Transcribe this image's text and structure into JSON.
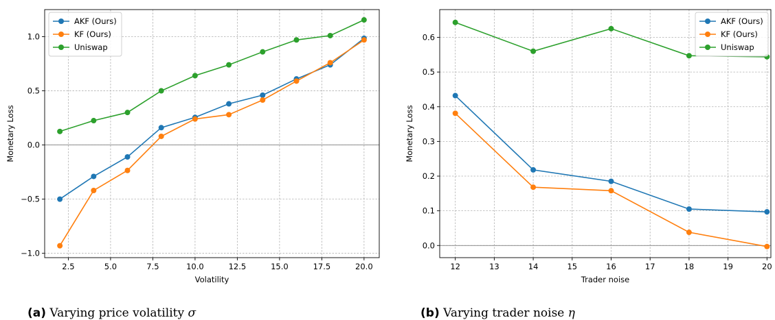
{
  "chart_data": [
    {
      "type": "line",
      "title": "",
      "xlabel": "Volatility",
      "ylabel": "Monetary Loss",
      "xlim": [
        1.1,
        20.9
      ],
      "ylim": [
        -1.04,
        1.25
      ],
      "xticks": [
        2.5,
        5.0,
        7.5,
        10.0,
        12.5,
        15.0,
        17.5,
        20.0
      ],
      "xtick_labels": [
        "2.5",
        "5.0",
        "7.5",
        "10.0",
        "12.5",
        "15.0",
        "17.5",
        "20.0"
      ],
      "yticks": [
        -1.0,
        -0.5,
        0.0,
        0.5,
        1.0
      ],
      "ytick_labels": [
        "−1.0",
        "−0.5",
        "0.0",
        "0.5",
        "1.0"
      ],
      "grid": true,
      "legend_position": "top-left",
      "zero_line": true,
      "x": [
        2,
        4,
        6,
        8,
        10,
        12,
        14,
        16,
        18,
        20
      ],
      "series": [
        {
          "name": "AKF (Ours)",
          "color": "#1f77b4",
          "values": [
            -0.5,
            -0.29,
            -0.11,
            0.16,
            0.255,
            0.38,
            0.46,
            0.61,
            0.74,
            0.985
          ]
        },
        {
          "name": "KF (Ours)",
          "color": "#ff7f0e",
          "values": [
            -0.93,
            -0.42,
            -0.235,
            0.08,
            0.24,
            0.28,
            0.415,
            0.59,
            0.76,
            0.97
          ]
        },
        {
          "name": "Uniswap",
          "color": "#2ca02c",
          "values": [
            0.125,
            0.225,
            0.3,
            0.5,
            0.64,
            0.74,
            0.86,
            0.97,
            1.01,
            1.155
          ]
        }
      ]
    },
    {
      "type": "line",
      "title": "",
      "xlabel": "Trader noise",
      "ylabel": "Monetary Loss",
      "xlim": [
        11.6,
        20.1
      ],
      "ylim": [
        -0.035,
        0.68
      ],
      "xticks": [
        12,
        13,
        14,
        15,
        16,
        17,
        18,
        19,
        20
      ],
      "xtick_labels": [
        "12",
        "13",
        "14",
        "15",
        "16",
        "17",
        "18",
        "19",
        "20"
      ],
      "yticks": [
        0.0,
        0.1,
        0.2,
        0.3,
        0.4,
        0.5,
        0.6
      ],
      "ytick_labels": [
        "0.0",
        "0.1",
        "0.2",
        "0.3",
        "0.4",
        "0.5",
        "0.6"
      ],
      "grid": true,
      "legend_position": "top-right",
      "zero_line": true,
      "x": [
        12,
        14,
        16,
        18,
        20
      ],
      "series": [
        {
          "name": "AKF (Ours)",
          "color": "#1f77b4",
          "values": [
            0.432,
            0.218,
            0.185,
            0.105,
            0.097
          ]
        },
        {
          "name": "KF (Ours)",
          "color": "#ff7f0e",
          "values": [
            0.381,
            0.168,
            0.158,
            0.038,
            -0.003
          ]
        },
        {
          "name": "Uniswap",
          "color": "#2ca02c",
          "values": [
            0.643,
            0.56,
            0.625,
            0.547,
            0.544
          ]
        }
      ]
    }
  ],
  "captions": [
    {
      "tag": "(a)",
      "text": "Varying price volatility",
      "symbol": "σ"
    },
    {
      "tag": "(b)",
      "text": "Varying trader noise",
      "symbol": "η"
    }
  ]
}
